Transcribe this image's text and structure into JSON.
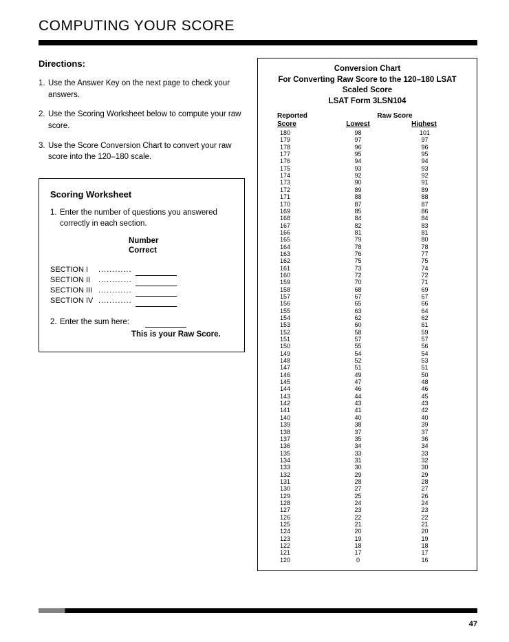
{
  "title": "COMPUTING YOUR SCORE",
  "directionsHeading": "Directions:",
  "directions": [
    "Use the Answer Key on the next page to check your answers.",
    "Use the Scoring Worksheet below to compute your raw score.",
    "Use the Score Conversion Chart to convert your raw score into the 120–180 scale."
  ],
  "worksheet": {
    "title": "Scoring Worksheet",
    "item1": "Enter the number of questions you answered correctly in each section.",
    "numCorrectLabel1": "Number",
    "numCorrectLabel2": "Correct",
    "sections": [
      "SECTION I",
      "SECTION II",
      "SECTION III",
      "SECTION IV"
    ],
    "item2": "Enter the sum here:",
    "rawNote": "This is your Raw Score."
  },
  "chart": {
    "line1": "Conversion Chart",
    "line2": "For Converting Raw Score to the 120–180 LSAT",
    "line3": "Scaled Score",
    "line4": "LSAT Form 3LSN104",
    "reportedHeader": "Reported",
    "rawHeader": "Raw Score",
    "scoreHeader": "Score",
    "lowestHeader": "Lowest",
    "highestHeader": "Highest",
    "rows": [
      {
        "r": "180",
        "l": "98",
        "h": "101"
      },
      {
        "r": "179",
        "l": "97",
        "h": "97"
      },
      {
        "r": "178",
        "l": "96",
        "h": "96"
      },
      {
        "r": "177",
        "l": "95",
        "h": "95"
      },
      {
        "r": "176",
        "l": "94",
        "h": "94"
      },
      {
        "r": "175",
        "l": "93",
        "h": "93"
      },
      {
        "r": "174",
        "l": "92",
        "h": "92"
      },
      {
        "r": "173",
        "l": "90",
        "h": "91"
      },
      {
        "r": "172",
        "l": "89",
        "h": "89"
      },
      {
        "r": "171",
        "l": "88",
        "h": "88"
      },
      {
        "r": "170",
        "l": "87",
        "h": "87"
      },
      {
        "r": "169",
        "l": "85",
        "h": "86"
      },
      {
        "r": "168",
        "l": "84",
        "h": "84"
      },
      {
        "r": "167",
        "l": "82",
        "h": "83"
      },
      {
        "r": "166",
        "l": "81",
        "h": "81"
      },
      {
        "r": "165",
        "l": "79",
        "h": "80"
      },
      {
        "r": "164",
        "l": "78",
        "h": "78"
      },
      {
        "r": "163",
        "l": "76",
        "h": "77"
      },
      {
        "r": "162",
        "l": "75",
        "h": "75"
      },
      {
        "r": "161",
        "l": "73",
        "h": "74"
      },
      {
        "r": "160",
        "l": "72",
        "h": "72"
      },
      {
        "r": "159",
        "l": "70",
        "h": "71"
      },
      {
        "r": "158",
        "l": "68",
        "h": "69"
      },
      {
        "r": "157",
        "l": "67",
        "h": "67"
      },
      {
        "r": "156",
        "l": "65",
        "h": "66"
      },
      {
        "r": "155",
        "l": "63",
        "h": "64"
      },
      {
        "r": "154",
        "l": "62",
        "h": "62"
      },
      {
        "r": "153",
        "l": "60",
        "h": "61"
      },
      {
        "r": "152",
        "l": "58",
        "h": "59"
      },
      {
        "r": "151",
        "l": "57",
        "h": "57"
      },
      {
        "r": "150",
        "l": "55",
        "h": "56"
      },
      {
        "r": "149",
        "l": "54",
        "h": "54"
      },
      {
        "r": "148",
        "l": "52",
        "h": "53"
      },
      {
        "r": "147",
        "l": "51",
        "h": "51"
      },
      {
        "r": "146",
        "l": "49",
        "h": "50"
      },
      {
        "r": "145",
        "l": "47",
        "h": "48"
      },
      {
        "r": "144",
        "l": "46",
        "h": "46"
      },
      {
        "r": "143",
        "l": "44",
        "h": "45"
      },
      {
        "r": "142",
        "l": "43",
        "h": "43"
      },
      {
        "r": "141",
        "l": "41",
        "h": "42"
      },
      {
        "r": "140",
        "l": "40",
        "h": "40"
      },
      {
        "r": "139",
        "l": "38",
        "h": "39"
      },
      {
        "r": "138",
        "l": "37",
        "h": "37"
      },
      {
        "r": "137",
        "l": "35",
        "h": "36"
      },
      {
        "r": "136",
        "l": "34",
        "h": "34"
      },
      {
        "r": "135",
        "l": "33",
        "h": "33"
      },
      {
        "r": "134",
        "l": "31",
        "h": "32"
      },
      {
        "r": "133",
        "l": "30",
        "h": "30"
      },
      {
        "r": "132",
        "l": "29",
        "h": "29"
      },
      {
        "r": "131",
        "l": "28",
        "h": "28"
      },
      {
        "r": "130",
        "l": "27",
        "h": "27"
      },
      {
        "r": "129",
        "l": "25",
        "h": "26"
      },
      {
        "r": "128",
        "l": "24",
        "h": "24"
      },
      {
        "r": "127",
        "l": "23",
        "h": "23"
      },
      {
        "r": "126",
        "l": "22",
        "h": "22"
      },
      {
        "r": "125",
        "l": "21",
        "h": "21"
      },
      {
        "r": "124",
        "l": "20",
        "h": "20"
      },
      {
        "r": "123",
        "l": "19",
        "h": "19"
      },
      {
        "r": "122",
        "l": "18",
        "h": "18"
      },
      {
        "r": "121",
        "l": "17",
        "h": "17"
      },
      {
        "r": "120",
        "l": "0",
        "h": "16"
      }
    ]
  },
  "pageNumber": "47",
  "colors": {
    "text": "#000000",
    "background": "#ffffff",
    "barBlack": "#000000",
    "barGray": "#808080"
  }
}
